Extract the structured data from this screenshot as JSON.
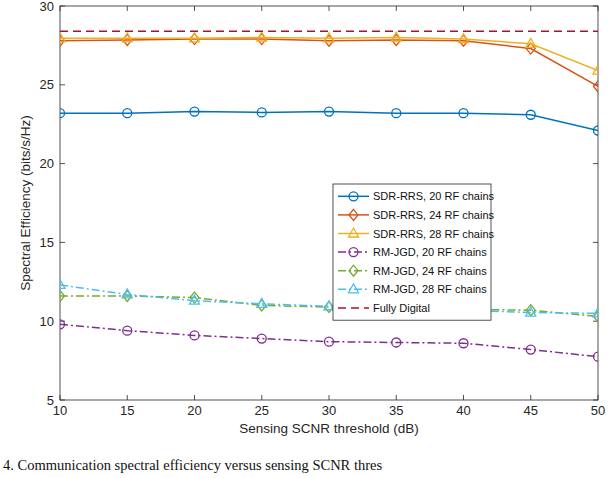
{
  "chart_data": {
    "type": "line",
    "x_label": "Sensing SCNR threshold (dB)",
    "y_label": "Spectral Efficiency (bits/s/Hz)",
    "caption": "4.  Communication spectral efficiency versus sensing SCNR thres",
    "x": [
      10,
      15,
      20,
      25,
      30,
      35,
      40,
      45,
      50
    ],
    "xlim": [
      10,
      50
    ],
    "xticks": [
      10,
      15,
      20,
      25,
      30,
      35,
      40,
      45,
      50
    ],
    "ylim": [
      5,
      30
    ],
    "yticks": [
      5,
      10,
      15,
      20,
      25,
      30
    ],
    "grid": false,
    "legend": "right",
    "series": [
      {
        "name": "SDR-RRS, 20 RF chains",
        "color": "#0072bd",
        "marker": "circle",
        "line_style": "solid",
        "values": [
          23.2,
          23.2,
          23.3,
          23.25,
          23.3,
          23.2,
          23.2,
          23.1,
          22.1
        ]
      },
      {
        "name": "SDR-RRS, 24 RF chains",
        "color": "#d95319",
        "marker": "diamond",
        "line_style": "solid",
        "values": [
          27.8,
          27.85,
          27.9,
          27.9,
          27.8,
          27.85,
          27.8,
          27.3,
          24.9
        ]
      },
      {
        "name": "SDR-RRS, 28 RF chains",
        "color": "#edb120",
        "marker": "triangle",
        "line_style": "solid",
        "values": [
          27.95,
          27.95,
          27.95,
          28.0,
          27.95,
          28.0,
          27.9,
          27.6,
          25.9
        ]
      },
      {
        "name": "RM-JGD, 20 RF chains",
        "color": "#7e2f8e",
        "marker": "circle",
        "line_style": "dashdot",
        "values": [
          9.8,
          9.4,
          9.1,
          8.9,
          8.7,
          8.65,
          8.6,
          8.2,
          7.75
        ]
      },
      {
        "name": "RM-JGD, 24 RF chains",
        "color": "#77ac30",
        "marker": "diamond",
        "line_style": "dashdot",
        "values": [
          11.6,
          11.6,
          11.5,
          11.0,
          10.9,
          10.8,
          10.75,
          10.7,
          10.3
        ]
      },
      {
        "name": "RM-JGD, 28 RF chains",
        "color": "#4dbeee",
        "marker": "triangle",
        "line_style": "dashdot",
        "values": [
          12.3,
          11.7,
          11.3,
          11.1,
          10.95,
          10.9,
          10.7,
          10.55,
          10.5
        ]
      },
      {
        "name": "Fully Digital",
        "color": "#a2142f",
        "marker": "none",
        "line_style": "dashed",
        "values": [
          28.4,
          28.4,
          28.4,
          28.4,
          28.4,
          28.4,
          28.4,
          28.4,
          28.4
        ]
      }
    ]
  }
}
